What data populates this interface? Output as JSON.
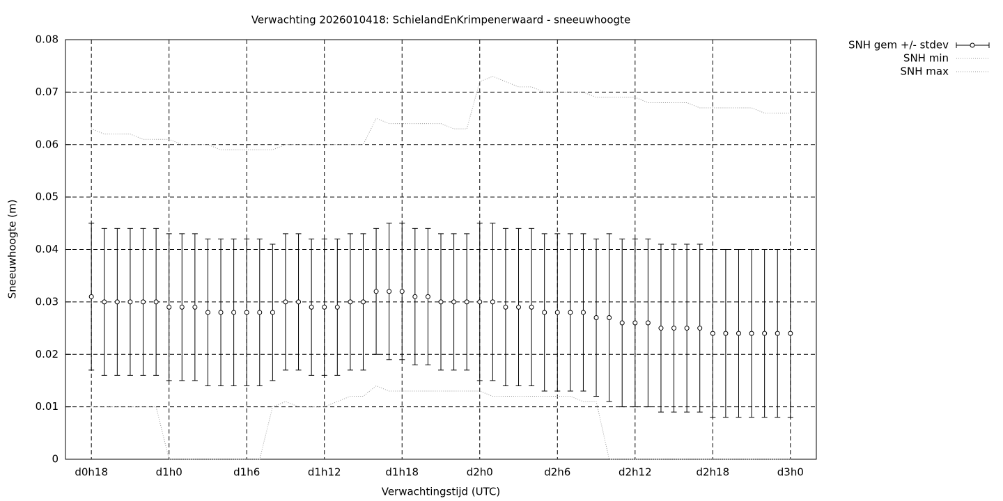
{
  "chart_data": {
    "type": "line",
    "title": "Verwachting 2026010418: SchielandEnKrimpenerwaard - sneeuwhoogte",
    "x_label": "Verwachtingstijd (UTC)",
    "y_label": "Sneeuwhoogte (m)",
    "x": [
      18,
      19,
      20,
      21,
      22,
      23,
      24,
      25,
      26,
      27,
      28,
      29,
      30,
      31,
      32,
      33,
      34,
      35,
      36,
      37,
      38,
      39,
      40,
      41,
      42,
      43,
      44,
      45,
      46,
      47,
      48,
      49,
      50,
      51,
      52,
      53,
      54,
      55,
      56,
      57,
      58,
      59,
      60,
      61,
      62,
      63,
      64,
      65,
      66,
      67,
      68,
      69,
      70,
      71,
      72
    ],
    "series": [
      {
        "name": "SNH gem +/- stdev",
        "color": "#000000",
        "values": [
          0.031,
          0.03,
          0.03,
          0.03,
          0.03,
          0.03,
          0.029,
          0.029,
          0.029,
          0.028,
          0.028,
          0.028,
          0.028,
          0.028,
          0.028,
          0.03,
          0.03,
          0.029,
          0.029,
          0.029,
          0.03,
          0.03,
          0.032,
          0.032,
          0.032,
          0.031,
          0.031,
          0.03,
          0.03,
          0.03,
          0.03,
          0.03,
          0.029,
          0.029,
          0.029,
          0.028,
          0.028,
          0.028,
          0.028,
          0.027,
          0.027,
          0.026,
          0.026,
          0.026,
          0.025,
          0.025,
          0.025,
          0.025,
          0.024,
          0.024,
          0.024,
          0.024,
          0.024,
          0.024,
          0.024
        ],
        "errors": [
          0.014,
          0.014,
          0.014,
          0.014,
          0.014,
          0.014,
          0.014,
          0.014,
          0.014,
          0.014,
          0.014,
          0.014,
          0.014,
          0.014,
          0.013,
          0.013,
          0.013,
          0.013,
          0.013,
          0.013,
          0.013,
          0.013,
          0.012,
          0.013,
          0.013,
          0.013,
          0.013,
          0.013,
          0.013,
          0.013,
          0.015,
          0.015,
          0.015,
          0.015,
          0.015,
          0.015,
          0.015,
          0.015,
          0.015,
          0.015,
          0.016,
          0.016,
          0.016,
          0.016,
          0.016,
          0.016,
          0.016,
          0.016,
          0.016,
          0.016,
          0.016,
          0.016,
          0.016,
          0.016,
          0.016
        ]
      },
      {
        "name": "SNH min",
        "color": "#999999",
        "values": [
          0.01,
          0.01,
          0.01,
          0.01,
          0.01,
          0.01,
          0,
          0,
          0,
          0,
          0,
          0,
          0,
          0,
          0.01,
          0.011,
          0.01,
          0.01,
          0.01,
          0.011,
          0.012,
          0.012,
          0.014,
          0.013,
          0.013,
          0.013,
          0.013,
          0.013,
          0.013,
          0.013,
          0.013,
          0.012,
          0.012,
          0.012,
          0.012,
          0.012,
          0.012,
          0.012,
          0.011,
          0.011,
          0,
          0,
          0,
          0,
          0,
          0,
          0,
          0,
          0,
          0,
          0,
          0,
          0,
          0,
          0
        ]
      },
      {
        "name": "SNH max",
        "color": "#999999",
        "values": [
          0.063,
          0.062,
          0.062,
          0.062,
          0.061,
          0.061,
          0.061,
          0.06,
          0.06,
          0.06,
          0.059,
          0.059,
          0.059,
          0.059,
          0.059,
          0.06,
          0.06,
          0.06,
          0.06,
          0.06,
          0.06,
          0.06,
          0.065,
          0.064,
          0.064,
          0.064,
          0.064,
          0.064,
          0.063,
          0.063,
          0.072,
          0.073,
          0.072,
          0.071,
          0.071,
          0.07,
          0.07,
          0.07,
          0.07,
          0.069,
          0.069,
          0.069,
          0.069,
          0.068,
          0.068,
          0.068,
          0.068,
          0.067,
          0.067,
          0.067,
          0.067,
          0.067,
          0.066,
          0.066,
          0.066
        ]
      }
    ],
    "xlim": [
      16,
      74
    ],
    "ylim": [
      0,
      0.08
    ],
    "xticks": [
      {
        "value": 18,
        "label": "d0h18"
      },
      {
        "value": 24,
        "label": "d1h0"
      },
      {
        "value": 30,
        "label": "d1h6"
      },
      {
        "value": 36,
        "label": "d1h12"
      },
      {
        "value": 42,
        "label": "d1h18"
      },
      {
        "value": 48,
        "label": "d2h0"
      },
      {
        "value": 54,
        "label": "d2h6"
      },
      {
        "value": 60,
        "label": "d2h12"
      },
      {
        "value": 66,
        "label": "d2h18"
      },
      {
        "value": 72,
        "label": "d3h0"
      }
    ],
    "yticks": [
      0,
      0.01,
      0.02,
      0.03,
      0.04,
      0.05,
      0.06,
      0.07,
      0.08
    ],
    "grid": true,
    "legend": "outside-top-right"
  }
}
